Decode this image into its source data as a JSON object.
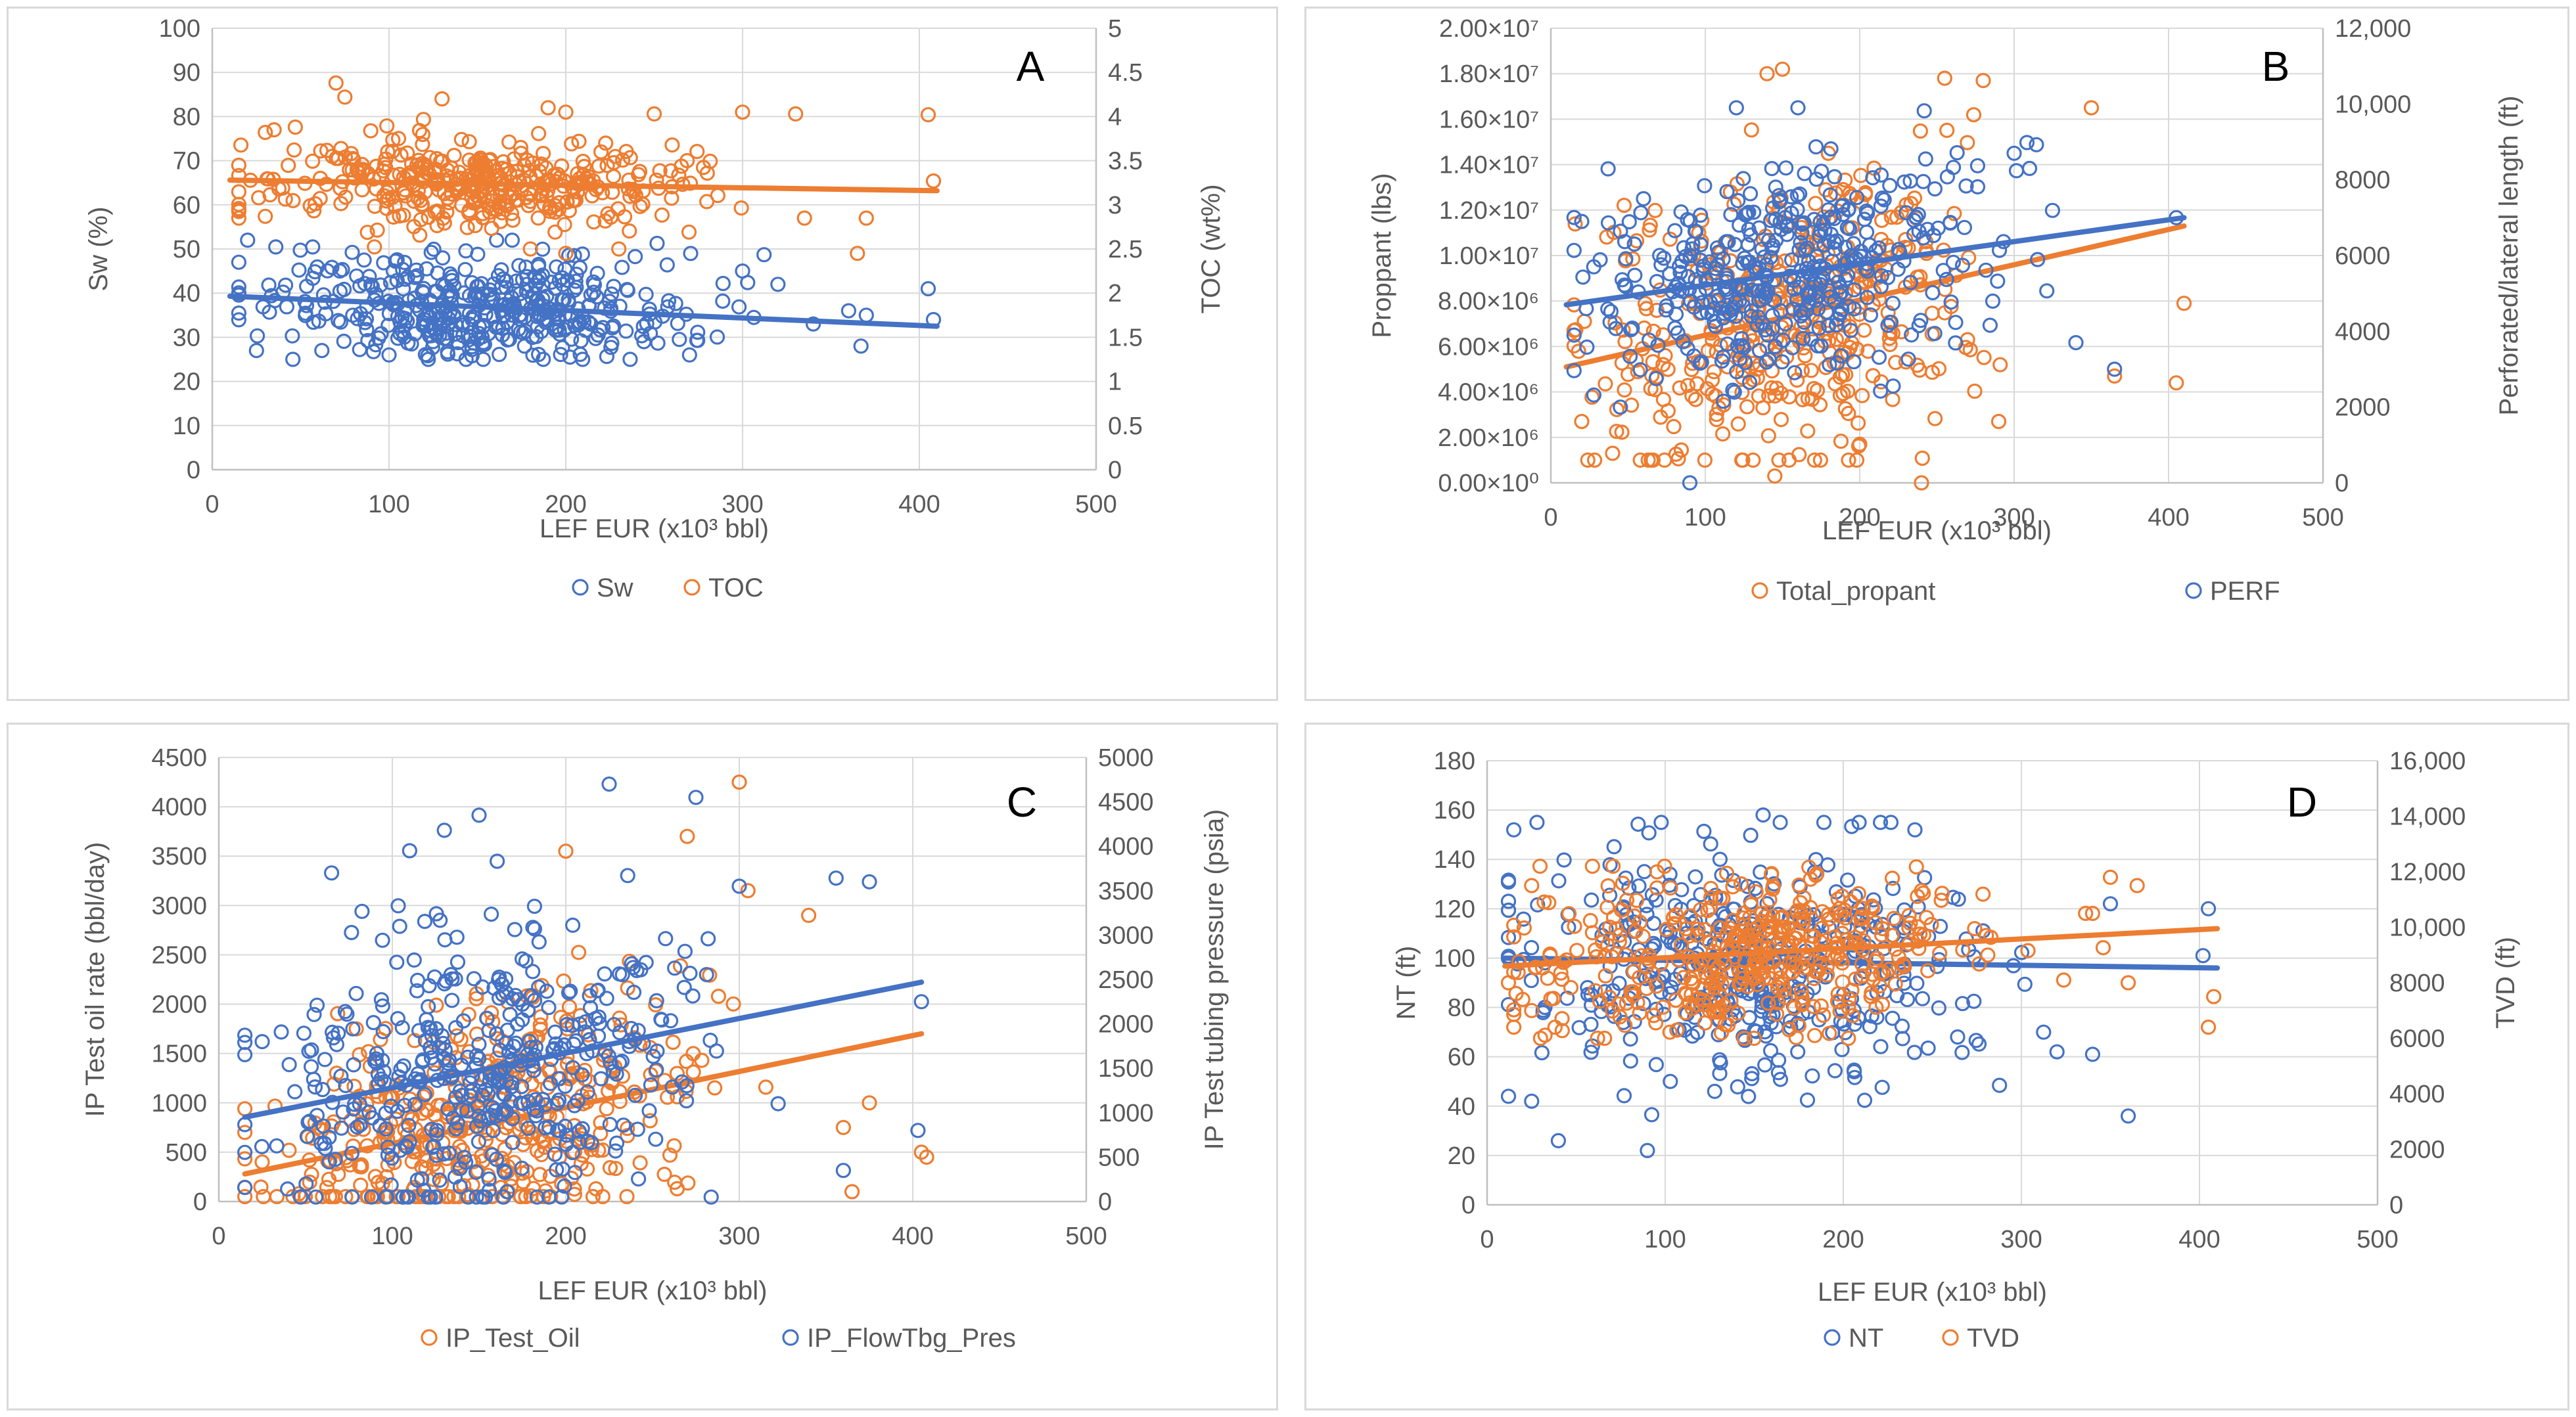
{
  "colors": {
    "blue": "#4472c4",
    "orange": "#ed7d31",
    "grid": "#d9d9d9",
    "axis": "#bfbfbf",
    "text": "#595959"
  },
  "chart_data": [
    {
      "id": "A",
      "type": "scatter",
      "panel_label": "A",
      "xlabel": "LEF EUR (x10³ bbl)",
      "xlim": [
        0,
        500
      ],
      "xticks": [
        "0",
        "100",
        "200",
        "300",
        "400",
        "500"
      ],
      "ylabel": "Sw (%)",
      "ylim": [
        0,
        100
      ],
      "yticks": [
        "0",
        "10",
        "20",
        "30",
        "40",
        "50",
        "60",
        "70",
        "80",
        "90",
        "100"
      ],
      "y2label": "TOC (wt%)",
      "y2lim": [
        0,
        5
      ],
      "y2ticks": [
        "0",
        "0.5",
        "1",
        "1.5",
        "2",
        "2.5",
        "3",
        "3.5",
        "4",
        "4.5",
        "5"
      ],
      "grid": true,
      "legend_position": "bottom",
      "series": [
        {
          "name": "Sw",
          "color": "#4472c4",
          "axis": "left",
          "trend": [
            [
              10,
              39.3
            ],
            [
              410,
              32.5
            ]
          ],
          "cloud": {
            "n": 420,
            "x_mean": 150,
            "x_sd": 60,
            "x_min": 15,
            "x_max": 410,
            "trend_noise": 6,
            "y_min": 25,
            "y_max": 52
          },
          "points": [
            [
              20,
              52
            ],
            [
              15,
              47
            ],
            [
              25,
              27
            ],
            [
              62,
              27
            ],
            [
              100,
              26
            ],
            [
              270,
              26
            ],
            [
              360,
              36
            ],
            [
              370,
              35
            ],
            [
              340,
              33
            ],
            [
              405,
              41
            ],
            [
              408,
              34
            ],
            [
              367,
              28
            ],
            [
              300,
              45
            ],
            [
              320,
              42
            ]
          ]
        },
        {
          "name": "TOC",
          "color": "#ed7d31",
          "axis": "right",
          "trend": [
            [
              10,
              3.28
            ],
            [
              410,
              3.16
            ]
          ],
          "cloud": {
            "n": 380,
            "x_mean": 150,
            "x_sd": 60,
            "x_min": 15,
            "x_max": 410,
            "trend_noise": 0.25,
            "y_min": 2.5,
            "y_max": 4.4
          },
          "points": [
            [
              70,
              4.38
            ],
            [
              75,
              4.22
            ],
            [
              130,
              4.2
            ],
            [
              405,
              4.02
            ],
            [
              408,
              3.27
            ],
            [
              15,
              2.85
            ],
            [
              30,
              2.87
            ],
            [
              30,
              3.82
            ],
            [
              35,
              3.85
            ],
            [
              47,
              3.88
            ],
            [
              190,
              4.1
            ],
            [
              200,
              4.05
            ],
            [
              250,
              4.03
            ],
            [
              300,
              4.05
            ],
            [
              330,
              4.03
            ],
            [
              370,
              2.85
            ],
            [
              335,
              2.85
            ],
            [
              365,
              2.45
            ],
            [
              230,
              2.5
            ],
            [
              200,
              2.45
            ],
            [
              180,
              2.5
            ]
          ]
        }
      ]
    },
    {
      "id": "B",
      "type": "scatter",
      "panel_label": "B",
      "xlabel": "LEF EUR (x10³ bbl)",
      "xlim": [
        0,
        500
      ],
      "xticks": [
        "0",
        "100",
        "200",
        "300",
        "400",
        "500"
      ],
      "ylabel": "Proppant (lbs)",
      "ylim": [
        0,
        20000000
      ],
      "yticks": [
        "0.00×10⁰",
        "2.00×10⁶",
        "4.00×10⁶",
        "6.00×10⁶",
        "8.00×10⁶",
        "1.00×10⁷",
        "1.20×10⁷",
        "1.40×10⁷",
        "1.60×10⁷",
        "1.80×10⁷",
        "2.00×10⁷"
      ],
      "y2label": "Perforated/lateral length (ft)",
      "y2lim": [
        0,
        12000
      ],
      "y2ticks": [
        "0",
        "2000",
        "4000",
        "6000",
        "8000",
        "10,000",
        "12,000"
      ],
      "grid": true,
      "legend_position": "bottom",
      "series": [
        {
          "name": "Total_propant",
          "color": "#ed7d31",
          "axis": "left",
          "trend": [
            [
              10,
              5100000
            ],
            [
              410,
              11300000
            ]
          ],
          "cloud": {
            "n": 400,
            "x_mean": 150,
            "x_sd": 60,
            "x_min": 15,
            "x_max": 410,
            "trend_noise": 3200000,
            "y_min": 1000000,
            "y_max": 18000000
          },
          "points": [
            [
              20,
              2700000
            ],
            [
              40,
              1300000
            ],
            [
              145,
              300000
            ],
            [
              240,
              0
            ],
            [
              140,
              18000000
            ],
            [
              150,
              18200000
            ],
            [
              255,
              17800000
            ],
            [
              280,
              17700000
            ],
            [
              350,
              16500000
            ],
            [
              405,
              4400000
            ],
            [
              410,
              7900000
            ],
            [
              365,
              4700000
            ],
            [
              200,
              1700000
            ],
            [
              290,
              2700000
            ]
          ]
        },
        {
          "name": "PERF",
          "color": "#4472c4",
          "axis": "right",
          "trend": [
            [
              10,
              4700
            ],
            [
              410,
              7000
            ]
          ],
          "cloud": {
            "n": 420,
            "x_mean": 150,
            "x_sd": 60,
            "x_min": 15,
            "x_max": 410,
            "trend_noise": 1300,
            "y_min": 1500,
            "y_max": 9900
          },
          "points": [
            [
              90,
              0
            ],
            [
              15,
              3900
            ],
            [
              20,
              6900
            ],
            [
              45,
              2000
            ],
            [
              340,
              3700
            ],
            [
              365,
              3000
            ],
            [
              405,
              7000
            ],
            [
              300,
              8700
            ],
            [
              310,
              8300
            ],
            [
              160,
              9900
            ],
            [
              60,
              7500
            ]
          ]
        }
      ]
    },
    {
      "id": "C",
      "type": "scatter",
      "panel_label": "C",
      "xlabel": "LEF EUR (x10³ bbl)",
      "xlim": [
        0,
        500
      ],
      "xticks": [
        "0",
        "100",
        "200",
        "300",
        "400",
        "500"
      ],
      "ylabel": "IP Test oil rate (bbl/day)",
      "ylim": [
        0,
        4500
      ],
      "yticks": [
        "0",
        "500",
        "1000",
        "1500",
        "2000",
        "2500",
        "3000",
        "3500",
        "4000",
        "4500"
      ],
      "y2label": "IP Test tubing pressure (psia)",
      "y2lim": [
        0,
        5000
      ],
      "y2ticks": [
        "0",
        "500",
        "1000",
        "1500",
        "2000",
        "2500",
        "3000",
        "3500",
        "4000",
        "4500",
        "5000"
      ],
      "grid": true,
      "legend_position": "bottom",
      "series": [
        {
          "name": "IP_Test_Oil",
          "color": "#ed7d31",
          "axis": "left",
          "trend": [
            [
              15,
              280
            ],
            [
              405,
              1700
            ]
          ],
          "cloud": {
            "n": 420,
            "x_mean": 150,
            "x_sd": 60,
            "x_min": 15,
            "x_max": 410,
            "trend_noise": 550,
            "y_min": 50,
            "y_max": 3600
          },
          "points": [
            [
              300,
              4250
            ],
            [
              270,
              3700
            ],
            [
              200,
              3550
            ],
            [
              340,
              2900
            ],
            [
              305,
              3150
            ],
            [
              365,
              100
            ],
            [
              405,
              500
            ],
            [
              408,
              450
            ],
            [
              375,
              1000
            ],
            [
              360,
              750
            ],
            [
              15,
              700
            ],
            [
              25,
              400
            ]
          ]
        },
        {
          "name": "IP_FlowTbg_Pres",
          "color": "#4472c4",
          "axis": "right",
          "trend": [
            [
              15,
              950
            ],
            [
              405,
              2470
            ]
          ],
          "cloud": {
            "n": 440,
            "x_mean": 150,
            "x_sd": 60,
            "x_min": 15,
            "x_max": 410,
            "trend_noise": 800,
            "y_min": 50,
            "y_max": 4200
          },
          "points": [
            [
              225,
              4700
            ],
            [
              275,
              4550
            ],
            [
              150,
              4350
            ],
            [
              130,
              4180
            ],
            [
              110,
              3950
            ],
            [
              65,
              3700
            ],
            [
              375,
              3600
            ],
            [
              300,
              3550
            ],
            [
              25,
              1800
            ],
            [
              405,
              2250
            ],
            [
              403,
              800
            ],
            [
              360,
              350
            ],
            [
              125,
              50
            ]
          ]
        }
      ]
    },
    {
      "id": "D",
      "type": "scatter",
      "panel_label": "D",
      "xlabel": "LEF EUR (x10³ bbl)",
      "xlim": [
        0,
        500
      ],
      "xticks": [
        "0",
        "100",
        "200",
        "300",
        "400",
        "500"
      ],
      "ylabel": "NT (ft)",
      "ylim": [
        0,
        180
      ],
      "yticks": [
        "0",
        "20",
        "40",
        "60",
        "80",
        "100",
        "120",
        "140",
        "160",
        "180"
      ],
      "y2label": "TVD (ft)",
      "y2lim": [
        0,
        16000
      ],
      "y2ticks": [
        "0",
        "2000",
        "4000",
        "6000",
        "8000",
        "10,000",
        "12,000",
        "14,000",
        "16,000"
      ],
      "grid": true,
      "legend_position": "bottom",
      "series": [
        {
          "name": "NT",
          "color": "#4472c4",
          "axis": "left",
          "trend": [
            [
              10,
              100
            ],
            [
              410,
              96
            ]
          ],
          "cloud": {
            "n": 420,
            "x_mean": 150,
            "x_sd": 65,
            "x_min": 12,
            "x_max": 410,
            "trend_noise": 24,
            "y_min": 25,
            "y_max": 155
          },
          "points": [
            [
              15,
              152
            ],
            [
              28,
              155
            ],
            [
              12,
              44
            ],
            [
              25,
              42
            ],
            [
              40,
              26
            ],
            [
              90,
              22
            ],
            [
              155,
              158
            ],
            [
              360,
              36
            ],
            [
              405,
              120
            ],
            [
              402,
              101
            ],
            [
              350,
              122
            ],
            [
              320,
              62
            ],
            [
              340,
              61
            ]
          ]
        },
        {
          "name": "TVD",
          "color": "#ed7d31",
          "axis": "right",
          "trend": [
            [
              10,
              8600
            ],
            [
              410,
              9950
            ]
          ],
          "cloud": {
            "n": 420,
            "x_mean": 150,
            "x_sd": 60,
            "x_min": 15,
            "x_max": 410,
            "trend_noise": 1500,
            "y_min": 6000,
            "y_max": 12200
          },
          "points": [
            [
              12,
              8000
            ],
            [
              15,
              6400
            ],
            [
              25,
              11500
            ],
            [
              30,
              6000
            ],
            [
              405,
              6400
            ],
            [
              408,
              7500
            ],
            [
              360,
              8000
            ],
            [
              365,
              11500
            ],
            [
              350,
              11800
            ],
            [
              340,
              10500
            ],
            [
              25,
              7000
            ],
            [
              20,
              7400
            ]
          ]
        }
      ]
    }
  ]
}
